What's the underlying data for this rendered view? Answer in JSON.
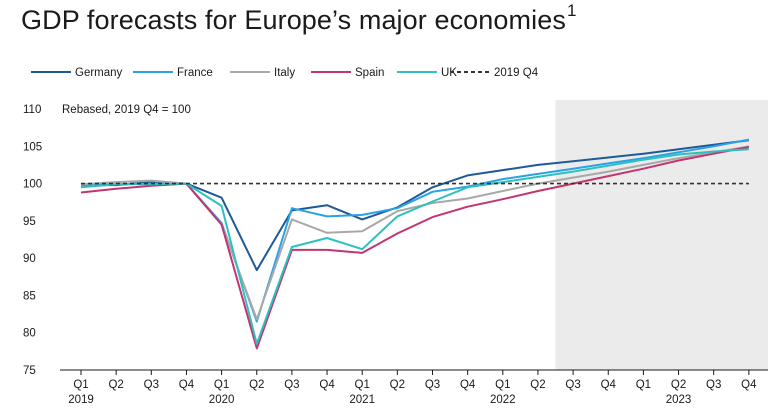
{
  "title_text": "GDP forecasts for Europe’s major economies",
  "title_footnote": "1",
  "chart_data": {
    "type": "line",
    "subtitle": "Rebased, 2019 Q4 = 100",
    "x": [
      "Q1",
      "Q2",
      "Q3",
      "Q4",
      "Q1",
      "Q2",
      "Q3",
      "Q4",
      "Q1",
      "Q2",
      "Q3",
      "Q4",
      "Q1",
      "Q2",
      "Q3",
      "Q4",
      "Q1",
      "Q2",
      "Q3",
      "Q4"
    ],
    "year_labels": [
      {
        "label": "2019",
        "index": 0
      },
      {
        "label": "2020",
        "index": 4
      },
      {
        "label": "2021",
        "index": 8
      },
      {
        "label": "2022",
        "index": 12
      },
      {
        "label": "2023",
        "index": 17
      }
    ],
    "ylim": [
      75,
      110
    ],
    "yticks": [
      75,
      80,
      85,
      90,
      95,
      100,
      105,
      110
    ],
    "forecast_start_index": 13.5,
    "series": [
      {
        "name": "Germany",
        "color": "#1f5a96",
        "values": [
          99.8,
          99.8,
          100.2,
          100.0,
          98.1,
          88.4,
          96.4,
          97.1,
          95.2,
          96.8,
          99.5,
          101.1,
          101.8,
          102.5,
          103.0,
          103.5,
          104.0,
          104.6,
          105.2,
          105.8
        ]
      },
      {
        "name": "France",
        "color": "#2aa3e6",
        "values": [
          99.7,
          99.9,
          100.0,
          100.0,
          94.7,
          81.5,
          96.7,
          95.6,
          95.8,
          96.7,
          98.9,
          99.6,
          100.6,
          101.3,
          102.0,
          102.7,
          103.4,
          104.2,
          105.0,
          105.9
        ]
      },
      {
        "name": "Italy",
        "color": "#a8a8a8",
        "values": [
          99.9,
          100.2,
          100.4,
          100.0,
          94.5,
          81.8,
          95.2,
          93.4,
          93.6,
          96.3,
          97.4,
          98.0,
          99.0,
          100.0,
          100.8,
          101.6,
          102.5,
          103.4,
          104.2,
          105.0
        ]
      },
      {
        "name": "Spain",
        "color": "#c2356f",
        "values": [
          98.8,
          99.3,
          99.7,
          100.0,
          94.5,
          77.9,
          91.1,
          91.1,
          90.7,
          93.3,
          95.5,
          96.9,
          97.9,
          99.0,
          100.0,
          101.0,
          102.0,
          103.1,
          104.0,
          104.9
        ]
      },
      {
        "name": "UK",
        "color": "#2ec0c0",
        "values": [
          99.5,
          99.9,
          99.9,
          100.0,
          97.0,
          78.5,
          91.5,
          92.7,
          91.2,
          95.6,
          97.6,
          99.5,
          100.2,
          100.9,
          101.6,
          102.4,
          103.2,
          103.9,
          104.3,
          104.6
        ]
      },
      {
        "name": "2019 Q4",
        "color": "#333333",
        "dashed": true,
        "values": [
          100,
          100,
          100,
          100,
          100,
          100,
          100,
          100,
          100,
          100,
          100,
          100,
          100,
          100,
          100,
          100,
          100,
          100,
          100,
          100
        ]
      }
    ]
  }
}
